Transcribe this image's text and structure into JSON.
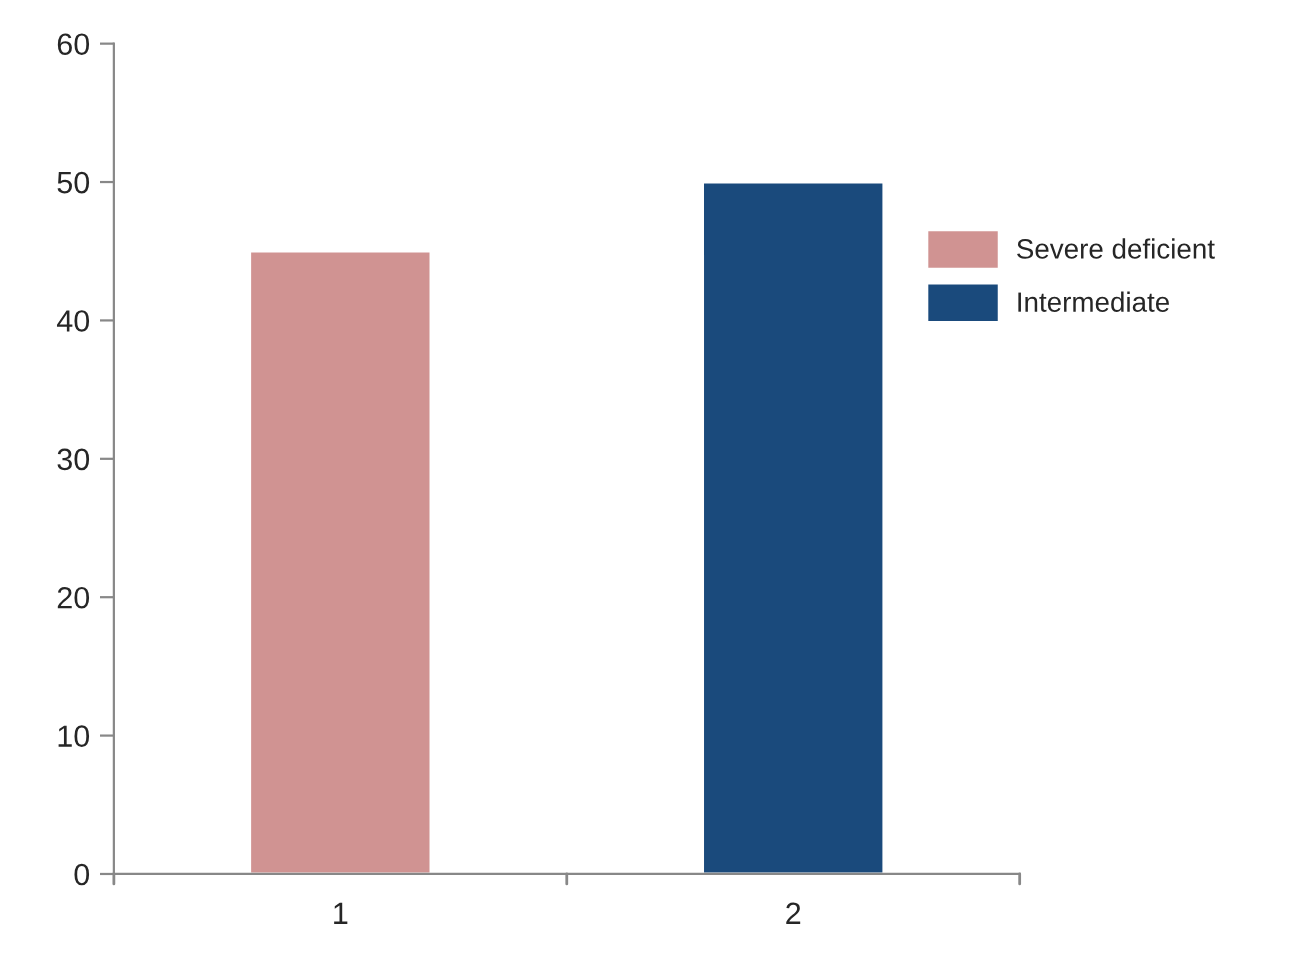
{
  "chart_data": {
    "type": "bar",
    "categories": [
      "1",
      "2"
    ],
    "series": [
      {
        "name": "Severe deficient",
        "color": "#d09392",
        "values": [
          45,
          null
        ]
      },
      {
        "name": "Intermediate",
        "color": "#1a4a7c",
        "values": [
          null,
          50
        ]
      }
    ],
    "ylim": [
      0,
      60
    ],
    "yticks": [
      0,
      10,
      20,
      30,
      40,
      50,
      60
    ],
    "grid": false,
    "legend": "right"
  }
}
